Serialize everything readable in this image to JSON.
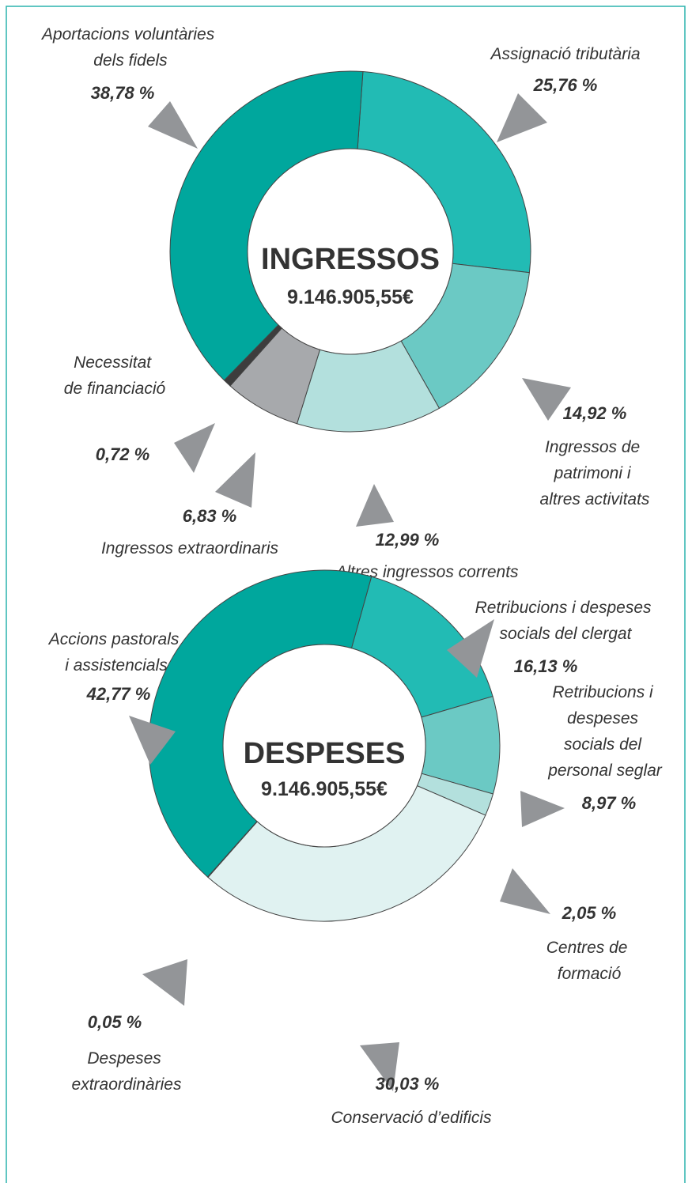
{
  "chart_data": [
    {
      "type": "pie",
      "title": "INGRESSOS",
      "subtitle": "9.146.905,55€",
      "categories": [
        "Assignació tributària",
        "Ingressos de patrimoni i altres activitats",
        "Altres ingressos corrents",
        "Ingressos extraordinaris",
        "Necessitat de financiació",
        "Aportacions voluntàries dels fidels"
      ],
      "values": [
        25.76,
        14.92,
        12.99,
        6.83,
        0.72,
        38.78
      ],
      "value_labels": [
        "25,76 %",
        "14,92 %",
        "12,99 %",
        "6,83 %",
        "0,72 %",
        "38,78 %"
      ],
      "colors": [
        "#22bbb4",
        "#6bc9c4",
        "#b3e0dd",
        "#a7a9ac",
        "#3d3d3d",
        "#00a79d"
      ]
    },
    {
      "type": "pie",
      "title": "DESPESES",
      "subtitle": "9.146.905,55€",
      "categories": [
        "Retribucions i despeses socials del clergat",
        "Retribucions i despeses socials del personal seglar",
        "Centres de formació",
        "Conservació d’edificis",
        "Despeses extraordinàries",
        "Accions pastorals i assistencials"
      ],
      "values": [
        16.13,
        8.97,
        2.05,
        30.03,
        0.05,
        42.77
      ],
      "value_labels": [
        "16,13 %",
        "8,97 %",
        "2,05 %",
        "30,03 %",
        "0,05 %",
        "42,77 %"
      ],
      "colors": [
        "#22bbb4",
        "#6bc9c4",
        "#b3e0dd",
        "#e0f2f1",
        "#3d3d3d",
        "#00a79d"
      ]
    }
  ]
}
